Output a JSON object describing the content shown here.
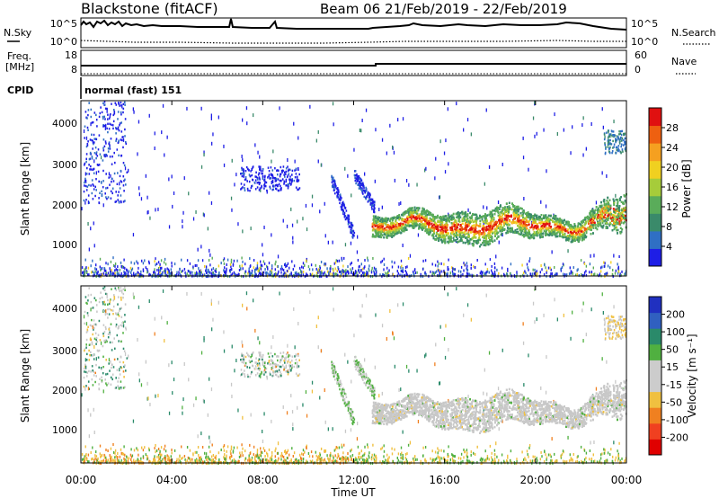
{
  "header": {
    "site": "Blackstone (fitACF)",
    "beam_date": "Beam 06  21/Feb/2019 - 22/Feb/2019"
  },
  "panel_labels": {
    "nsky": "N.Sky",
    "nsearch": "N.Search",
    "freq_1": "Freq.",
    "freq_2": "[MHz]",
    "nave": "Nave",
    "cpid": "CPID",
    "cpid_value": "normal (fast) 151"
  },
  "noise_ticks": {
    "left": [
      "10^5",
      "10^0"
    ],
    "right": [
      "10^5",
      "10^0"
    ]
  },
  "freq_ticks": {
    "left": [
      "18",
      "8"
    ],
    "right": [
      "60",
      "0"
    ]
  },
  "chart_data": [
    {
      "type": "heatmap",
      "name": "Power",
      "ylabel": "Slant Range [km]",
      "yticks": [
        "1000",
        "2000",
        "3000",
        "4000"
      ],
      "ylim": [
        180,
        4500
      ],
      "colorbar_label": "Power [dB]",
      "colorbar_ticks": [
        "4",
        "8",
        "12",
        "16",
        "20",
        "24",
        "28"
      ],
      "colorbar_colors": [
        "#1e1ee6",
        "#2f6fc4",
        "#3a8a6a",
        "#5aac5a",
        "#a6cc3a",
        "#f0d020",
        "#f5a020",
        "#ee6010",
        "#e01010"
      ]
    },
    {
      "type": "heatmap",
      "name": "Velocity",
      "ylabel": "Slant Range [km]",
      "yticks": [
        "1000",
        "2000",
        "3000",
        "4000"
      ],
      "ylim": [
        180,
        4500
      ],
      "colorbar_label": "Velocity [m s⁻¹]",
      "colorbar_ticks": [
        "200",
        "100",
        "50",
        "15",
        "-15",
        "-50",
        "-100",
        "-200"
      ],
      "colorbar_colors": [
        "#2030c0",
        "#3060c0",
        "#2a8a6a",
        "#50b040",
        "#cccccc",
        "#cccccc",
        "#f0c040",
        "#f08020",
        "#f04020",
        "#e00000"
      ]
    }
  ],
  "time_axis": {
    "label": "Time UT",
    "ticks": [
      "00:00",
      "04:00",
      "08:00",
      "12:00",
      "16:00",
      "20:00",
      "00:00"
    ]
  }
}
